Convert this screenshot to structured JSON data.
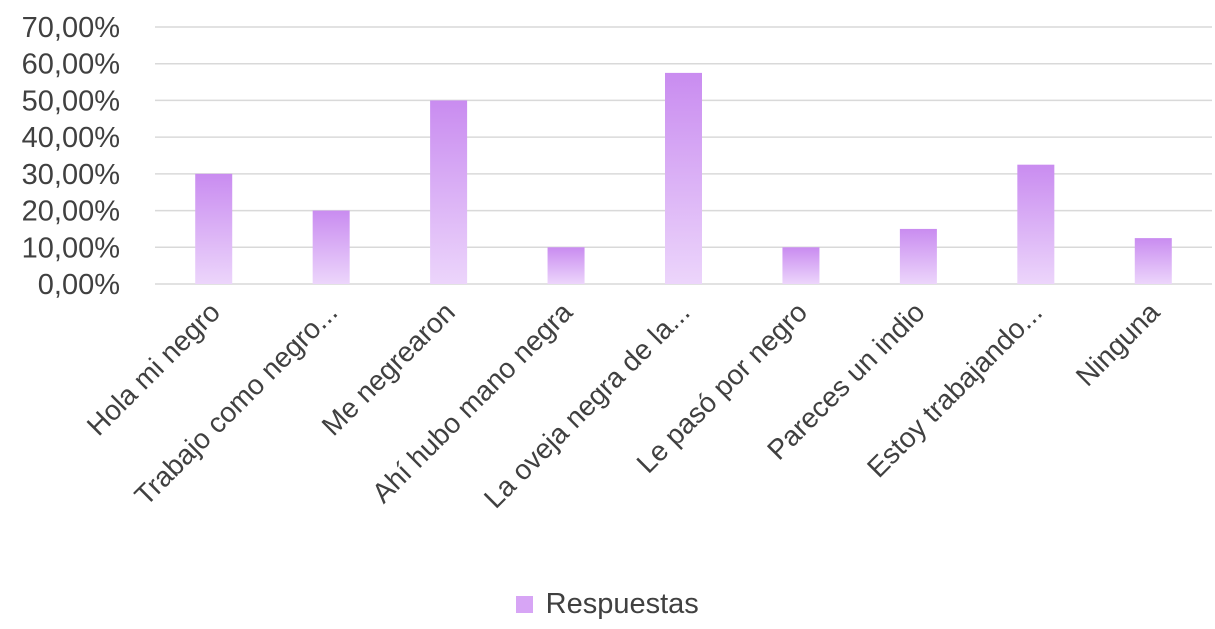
{
  "chart_data": {
    "type": "bar",
    "categories": [
      "Hola mi negro",
      "Trabajo como negro...",
      "Me negrearon",
      "Ahí hubo mano negra",
      "La oveja negra de la...",
      "Le pasó por negro",
      "Pareces un indio",
      "Estoy trabajando...",
      "Ninguna"
    ],
    "series": [
      {
        "name": "Respuestas",
        "values": [
          30.0,
          20.0,
          50.0,
          10.0,
          57.5,
          10.0,
          15.0,
          32.5,
          12.5
        ]
      }
    ],
    "ylim": [
      0,
      70
    ],
    "yticks": [
      "0,00%",
      "10,00%",
      "20,00%",
      "30,00%",
      "40,00%",
      "50,00%",
      "60,00%",
      "70,00%"
    ],
    "grid": true,
    "legend_position": "bottom",
    "colors": {
      "bar_top": "#c98cf0",
      "bar_bottom": "#ecd5fb",
      "legend": "#d7a5f5"
    }
  }
}
